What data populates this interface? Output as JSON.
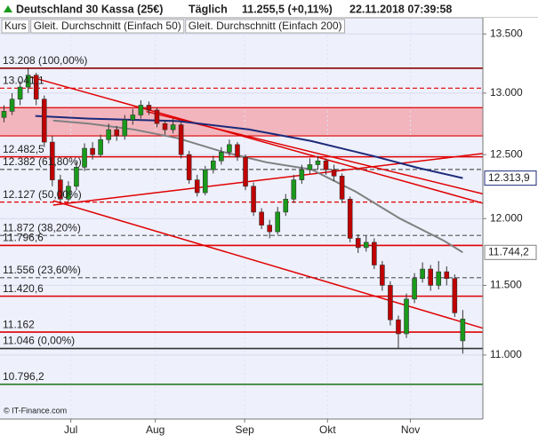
{
  "chart_data": {
    "type": "candlestick",
    "title": "Deutschland 30 Kassa (25€)",
    "interval": "Täglich",
    "last_price": "11.255,5 (+0,11%)",
    "timestamp": "22.11.2018 07:39:58",
    "candle_name": "Kurs",
    "credit": "© IT-Finance.com",
    "log_y": true,
    "ylim": [
      10560,
      13640
    ],
    "yticks": [
      {
        "value": 11000,
        "label": "11.000"
      },
      {
        "value": 11500,
        "label": "11.500"
      },
      {
        "value": 12000,
        "label": "12.000"
      },
      {
        "value": 12500,
        "label": "12.500"
      },
      {
        "value": 13000,
        "label": "13.000"
      },
      {
        "value": 13500,
        "label": "13.500"
      }
    ],
    "xticks": [
      {
        "value": 8.3,
        "label": "Jul"
      },
      {
        "value": 18.8,
        "label": "Aug"
      },
      {
        "value": 29.9,
        "label": "Sep"
      },
      {
        "value": 40.2,
        "label": "Okt"
      },
      {
        "value": 50.5,
        "label": "Nov"
      }
    ],
    "up_color": "#1a9a1a",
    "down_color": "#c00000",
    "ohlc": [
      [
        12800,
        12900,
        12760,
        12850
      ],
      [
        12850,
        13000,
        12820,
        12950
      ],
      [
        12950,
        13100,
        12900,
        13050
      ],
      [
        13050,
        13208,
        13000,
        13150
      ],
      [
        13150,
        13170,
        12900,
        12950
      ],
      [
        12950,
        12980,
        12560,
        12600
      ],
      [
        12600,
        12650,
        12250,
        12300
      ],
      [
        12300,
        12340,
        12127,
        12150
      ],
      [
        12150,
        12290,
        12130,
        12250
      ],
      [
        12250,
        12440,
        12220,
        12400
      ],
      [
        12400,
        12590,
        12370,
        12550
      ],
      [
        12550,
        12600,
        12460,
        12500
      ],
      [
        12500,
        12660,
        12480,
        12620
      ],
      [
        12620,
        12750,
        12590,
        12700
      ],
      [
        12700,
        12730,
        12610,
        12650
      ],
      [
        12650,
        12820,
        12620,
        12780
      ],
      [
        12780,
        12870,
        12740,
        12820
      ],
      [
        12820,
        12940,
        12790,
        12900
      ],
      [
        12900,
        12930,
        12820,
        12860
      ],
      [
        12860,
        12880,
        12720,
        12750
      ],
      [
        12750,
        12780,
        12660,
        12700
      ],
      [
        12700,
        12790,
        12670,
        12740
      ],
      [
        12740,
        12760,
        12470,
        12500
      ],
      [
        12500,
        12530,
        12270,
        12300
      ],
      [
        12300,
        12340,
        12170,
        12200
      ],
      [
        12200,
        12410,
        12180,
        12380
      ],
      [
        12380,
        12490,
        12350,
        12450
      ],
      [
        12450,
        12560,
        12420,
        12520
      ],
      [
        12520,
        12620,
        12490,
        12580
      ],
      [
        12580,
        12600,
        12450,
        12480
      ],
      [
        12480,
        12500,
        12220,
        12250
      ],
      [
        12250,
        12280,
        12020,
        12050
      ],
      [
        12050,
        12080,
        11920,
        11950
      ],
      [
        11950,
        11990,
        11850,
        11900
      ],
      [
        11900,
        12090,
        11880,
        12050
      ],
      [
        12050,
        12190,
        12020,
        12150
      ],
      [
        12150,
        12340,
        12120,
        12300
      ],
      [
        12300,
        12420,
        12270,
        12380
      ],
      [
        12380,
        12470,
        12350,
        12420
      ],
      [
        12420,
        12490,
        12380,
        12450
      ],
      [
        12450,
        12470,
        12340,
        12380
      ],
      [
        12380,
        12420,
        12290,
        12330
      ],
      [
        12330,
        12350,
        12120,
        12150
      ],
      [
        12150,
        12170,
        11820,
        11850
      ],
      [
        11850,
        11880,
        11740,
        11780
      ],
      [
        11780,
        11870,
        11750,
        11820
      ],
      [
        11820,
        11850,
        11620,
        11650
      ],
      [
        11650,
        11680,
        11460,
        11500
      ],
      [
        11500,
        11530,
        11210,
        11250
      ],
      [
        11250,
        11280,
        11050,
        11150
      ],
      [
        11150,
        11440,
        11120,
        11400
      ],
      [
        11400,
        11590,
        11370,
        11550
      ],
      [
        11550,
        11670,
        11520,
        11620
      ],
      [
        11620,
        11650,
        11460,
        11500
      ],
      [
        11500,
        11680,
        11470,
        11600
      ],
      [
        11600,
        11640,
        11500,
        11550
      ],
      [
        11550,
        11580,
        11270,
        11300
      ],
      [
        11100,
        11320,
        11010,
        11255.5
      ]
    ],
    "series": [
      {
        "name": "Gleit. Durchschnitt (Einfach 50)",
        "color": "#808080",
        "x": [
          6.1,
          10.55,
          16.1,
          21.6,
          27.1,
          32.6,
          38.2,
          43.7,
          49.2,
          54.7,
          57
        ],
        "values": [
          12775,
          12750,
          12702,
          12631,
          12524,
          12439,
          12382,
          12208,
          12000,
          11830,
          11744.2
        ],
        "last_label": "11.744,2"
      },
      {
        "name": "Gleit. Durchschnitt (Einfach 200)",
        "color": "#1c2a7a",
        "x": [
          3.9,
          10.55,
          21.6,
          30.4,
          38.2,
          45.9,
          51.4,
          57
        ],
        "values": [
          12812,
          12790,
          12770,
          12702,
          12608,
          12488,
          12395,
          12313.9
        ],
        "last_label": "12.313,9"
      }
    ],
    "zones": [
      {
        "from": 12650,
        "to": 12880,
        "color": "#f2b5bd"
      }
    ],
    "levels": [
      {
        "value": 13208,
        "label": "13.208 (100,00%)",
        "color": "#8b0000",
        "style": "solid"
      },
      {
        "value": 13041.1,
        "label": "13.041,1",
        "color": "#e00000",
        "style": "dashed"
      },
      {
        "value": 12482.5,
        "label": "12.482,5",
        "color": "#e00000",
        "style": "solid"
      },
      {
        "value": 12382,
        "label": "12.382 (61,80%)",
        "color": "#555555",
        "style": "dashed"
      },
      {
        "value": 12127,
        "label": "12.127 (50,00%)",
        "color": "#e00000",
        "style": "dashed"
      },
      {
        "value": 11872,
        "label": "11.872 (38,20%)",
        "color": "#555555",
        "style": "dashed"
      },
      {
        "value": 11796.6,
        "label": "11.796,6",
        "color": "#e00000",
        "style": "solid"
      },
      {
        "value": 11556,
        "label": "11.556 (23,60%)",
        "color": "#555555",
        "style": "dashed"
      },
      {
        "value": 11420.6,
        "label": "11.420,6",
        "color": "#e00000",
        "style": "solid"
      },
      {
        "value": 11162,
        "label": "11.162",
        "color": "#e00000",
        "style": "solid"
      },
      {
        "value": 11046,
        "label": "11.046 (0,00%)",
        "color": "#333333",
        "style": "solid"
      },
      {
        "value": 10796.2,
        "label": "10.796,2",
        "color": "#2a7a2a",
        "style": "solid"
      }
    ],
    "trendlines": [
      {
        "x": [
          2.8,
          59.5
        ],
        "y": [
          13144,
          12118
        ],
        "color": "#e00000"
      },
      {
        "x": [
          17.7,
          59.5
        ],
        "y": [
          12848,
          12191
        ],
        "color": "#e00000"
      },
      {
        "x": [
          6.1,
          59.5
        ],
        "y": [
          12104,
          12509
        ],
        "color": "#e00000"
      },
      {
        "x": [
          6.1,
          59.5
        ],
        "y": [
          12138,
          11190
        ],
        "color": "#e00000"
      }
    ]
  }
}
